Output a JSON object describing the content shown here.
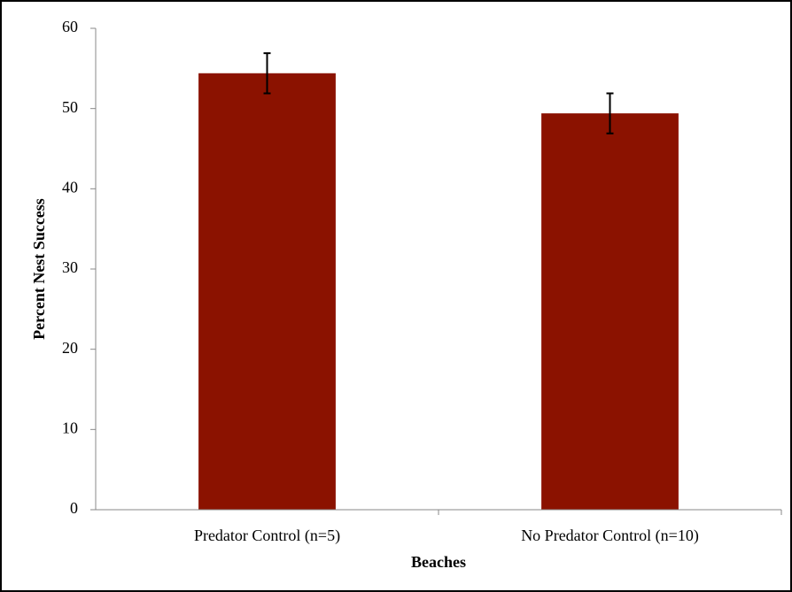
{
  "chart_data": {
    "type": "bar",
    "x_label": "Beaches",
    "y_label": "Percent Nest Success",
    "categories": [
      "Predator Control (n=5)",
      "No Predator Control (n=10)"
    ],
    "values": [
      54.4,
      49.4
    ],
    "errors": [
      2.5,
      2.5
    ],
    "color": "#8b1200",
    "ylim": [
      0,
      60
    ],
    "yticks": [
      0,
      10,
      20,
      30,
      40,
      50,
      60
    ],
    "grid": false
  }
}
